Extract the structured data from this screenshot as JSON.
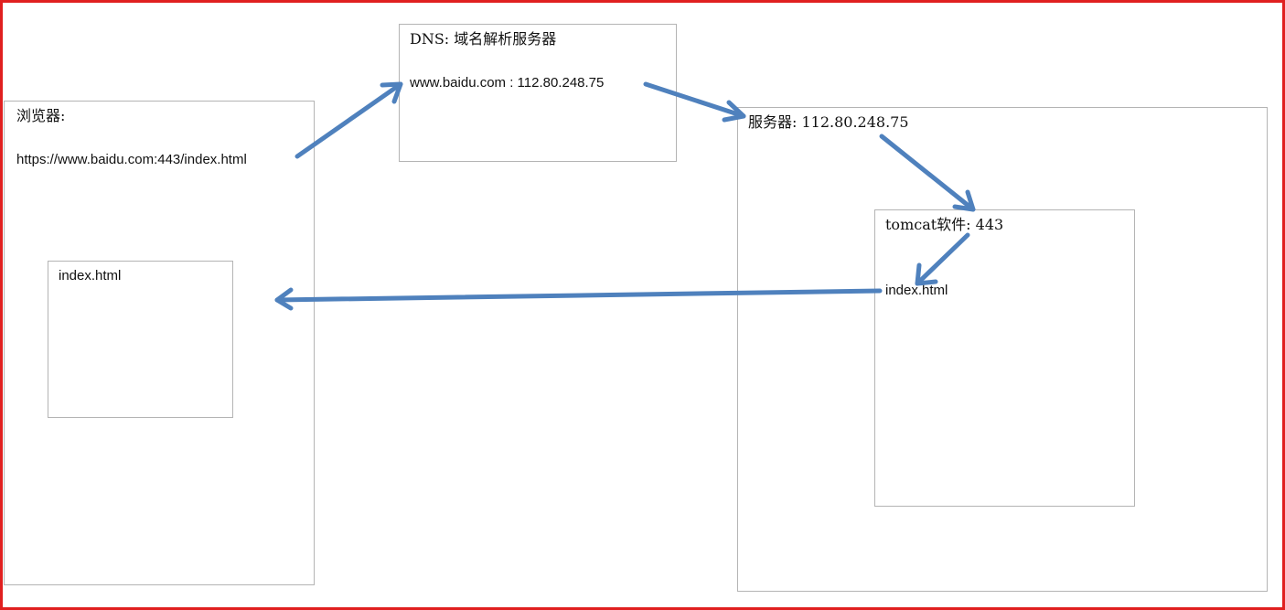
{
  "browser": {
    "title": "浏览器:",
    "url": "https://www.baidu.com:443/index.html",
    "page_label": "index.html"
  },
  "dns": {
    "title": "DNS: 域名解析服务器",
    "record": "www.baidu.com : 112.80.248.75"
  },
  "server": {
    "title": "服务器: 112.80.248.75"
  },
  "tomcat": {
    "title": "tomcat软件: 443",
    "file": "index.html"
  },
  "colors": {
    "frame": "#e02020",
    "box_border": "#b4b4b4",
    "arrow": "#4f81bd",
    "text": "#111111"
  }
}
